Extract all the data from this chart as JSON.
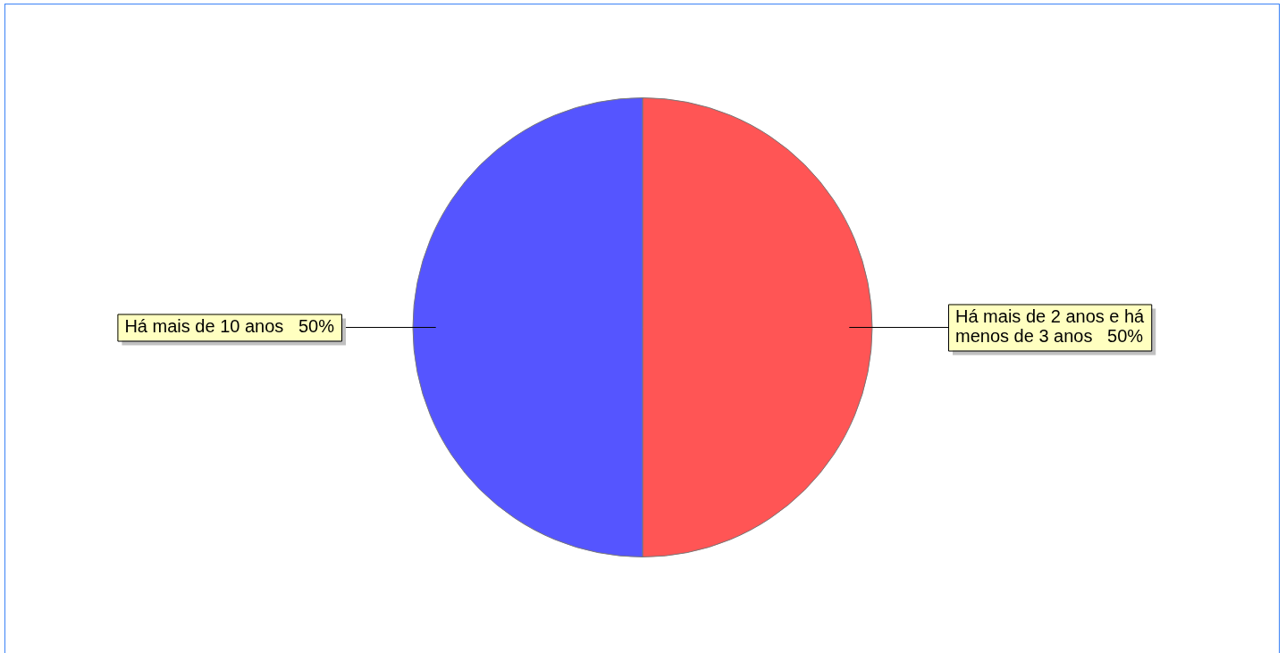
{
  "chart_data": {
    "type": "pie",
    "categories": [
      "Há mais de 2 anos e há menos de 3 anos",
      "Há mais de 10 anos"
    ],
    "values": [
      50,
      50
    ],
    "colors": [
      "#ff5555",
      "#5555ff"
    ],
    "value_labels": [
      "50%",
      "50%"
    ],
    "legend": false
  }
}
